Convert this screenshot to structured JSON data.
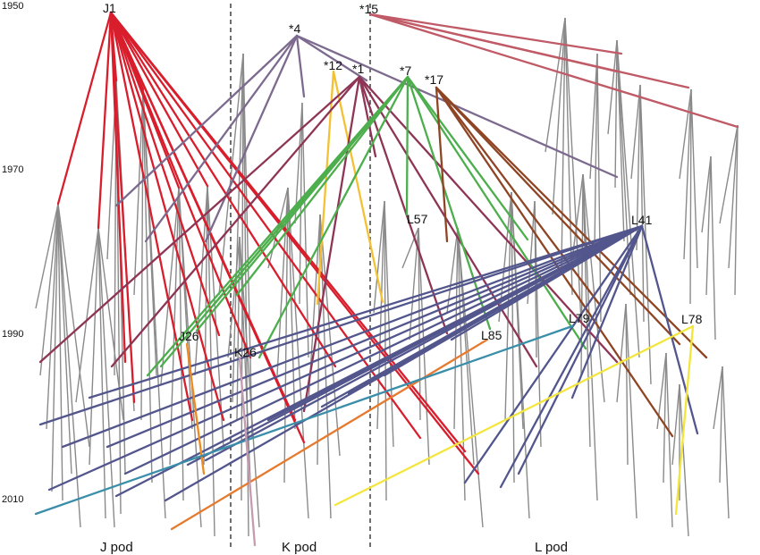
{
  "years": [
    "1950",
    "1970",
    "1990",
    "2010"
  ],
  "pods": [
    "J pod",
    "K pod",
    "L pod"
  ],
  "nodes": [
    "J1",
    "*4",
    "*15",
    "*12",
    "*1",
    "*7",
    "*17",
    "L57",
    "L41",
    "J26",
    "K26",
    "L85",
    "L79",
    "L78"
  ],
  "colors": {
    "J1": "#d81e2c",
    "*4": "#7d6a8f",
    "*15": "#c05a66",
    "*12": "#f4c034",
    "*1": "#8e3556",
    "*7": "#4cae4c",
    "*17": "#8e4524",
    "L41": "#52568c",
    "J26": "#ef8a1e",
    "L85": "#e67a2e",
    "L79": "#3a8eaa",
    "L78": "#f2e63a",
    "grey": "#8a8a8a"
  }
}
